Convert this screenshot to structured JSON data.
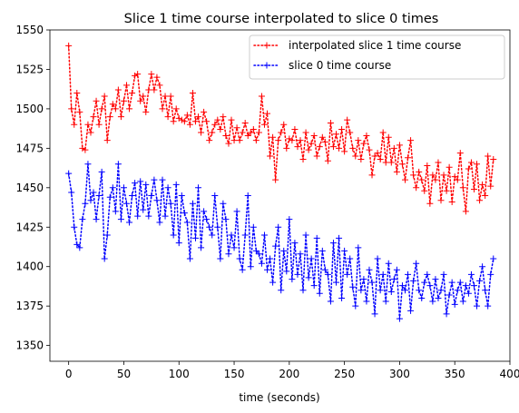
{
  "chart_data": {
    "type": "line",
    "title": "Slice 1 time course interpolated to slice 0 times",
    "xlabel": "time (seconds)",
    "ylabel": "",
    "xlim": [
      -17,
      400
    ],
    "ylim": [
      1340,
      1550
    ],
    "xticks": [
      0,
      50,
      100,
      150,
      200,
      250,
      300,
      350,
      400
    ],
    "yticks": [
      1350,
      1375,
      1400,
      1425,
      1450,
      1475,
      1500,
      1525,
      1550
    ],
    "grid": false,
    "legend_position": "top-right",
    "x_start": 0,
    "x_step": 2.5,
    "series": [
      {
        "name": "interpolated slice 1 time course",
        "color": "#ff0000",
        "linestyle": "dotted",
        "marker": "+",
        "values": [
          1540,
          1500,
          1490,
          1510,
          1498,
          1475,
          1474,
          1490,
          1485,
          1495,
          1505,
          1490,
          1500,
          1508,
          1480,
          1495,
          1503,
          1500,
          1512,
          1495,
          1505,
          1515,
          1500,
          1510,
          1521,
          1522,
          1505,
          1508,
          1498,
          1512,
          1522,
          1512,
          1520,
          1515,
          1500,
          1508,
          1495,
          1508,
          1492,
          1500,
          1494,
          1493,
          1492,
          1496,
          1490,
          1510,
          1492,
          1495,
          1485,
          1498,
          1492,
          1480,
          1485,
          1490,
          1493,
          1487,
          1495,
          1483,
          1478,
          1493,
          1480,
          1488,
          1480,
          1485,
          1491,
          1483,
          1485,
          1487,
          1480,
          1485,
          1508,
          1490,
          1497,
          1470,
          1482,
          1455,
          1480,
          1485,
          1490,
          1475,
          1481,
          1480,
          1487,
          1476,
          1480,
          1468,
          1485,
          1474,
          1478,
          1483,
          1470,
          1476,
          1482,
          1479,
          1467,
          1491,
          1476,
          1484,
          1475,
          1487,
          1473,
          1493,
          1485,
          1475,
          1470,
          1480,
          1468,
          1478,
          1483,
          1474,
          1458,
          1470,
          1472,
          1468,
          1485,
          1466,
          1482,
          1466,
          1475,
          1460,
          1477,
          1465,
          1455,
          1469,
          1480,
          1458,
          1450,
          1460,
          1455,
          1448,
          1464,
          1440,
          1458,
          1455,
          1466,
          1442,
          1458,
          1448,
          1463,
          1441,
          1457,
          1455,
          1472,
          1450,
          1435,
          1462,
          1466,
          1449,
          1465,
          1442,
          1452,
          1445,
          1470,
          1451,
          1468
        ]
      },
      {
        "name": "slice 0 time course",
        "color": "#0000ff",
        "linestyle": "dotted",
        "marker": "+",
        "values": [
          1459,
          1447,
          1425,
          1414,
          1412,
          1430,
          1440,
          1465,
          1442,
          1447,
          1430,
          1445,
          1460,
          1405,
          1420,
          1444,
          1450,
          1435,
          1465,
          1430,
          1450,
          1440,
          1428,
          1445,
          1453,
          1432,
          1454,
          1436,
          1452,
          1432,
          1445,
          1455,
          1442,
          1428,
          1455,
          1432,
          1450,
          1440,
          1420,
          1452,
          1415,
          1445,
          1434,
          1428,
          1405,
          1440,
          1418,
          1450,
          1412,
          1435,
          1430,
          1425,
          1420,
          1445,
          1425,
          1405,
          1440,
          1430,
          1408,
          1420,
          1412,
          1435,
          1405,
          1398,
          1420,
          1445,
          1400,
          1425,
          1410,
          1408,
          1402,
          1420,
          1398,
          1405,
          1390,
          1413,
          1425,
          1385,
          1410,
          1397,
          1430,
          1392,
          1415,
          1395,
          1408,
          1385,
          1420,
          1393,
          1405,
          1388,
          1418,
          1383,
          1410,
          1398,
          1395,
          1378,
          1415,
          1390,
          1418,
          1380,
          1410,
          1395,
          1405,
          1387,
          1375,
          1412,
          1385,
          1392,
          1378,
          1398,
          1390,
          1370,
          1405,
          1385,
          1395,
          1378,
          1402,
          1384,
          1392,
          1398,
          1367,
          1388,
          1385,
          1395,
          1372,
          1391,
          1402,
          1385,
          1380,
          1390,
          1395,
          1388,
          1378,
          1392,
          1380,
          1385,
          1395,
          1370,
          1382,
          1390,
          1376,
          1385,
          1390,
          1378,
          1388,
          1383,
          1395,
          1388,
          1375,
          1391,
          1400,
          1385,
          1375,
          1395,
          1405
        ]
      }
    ]
  }
}
